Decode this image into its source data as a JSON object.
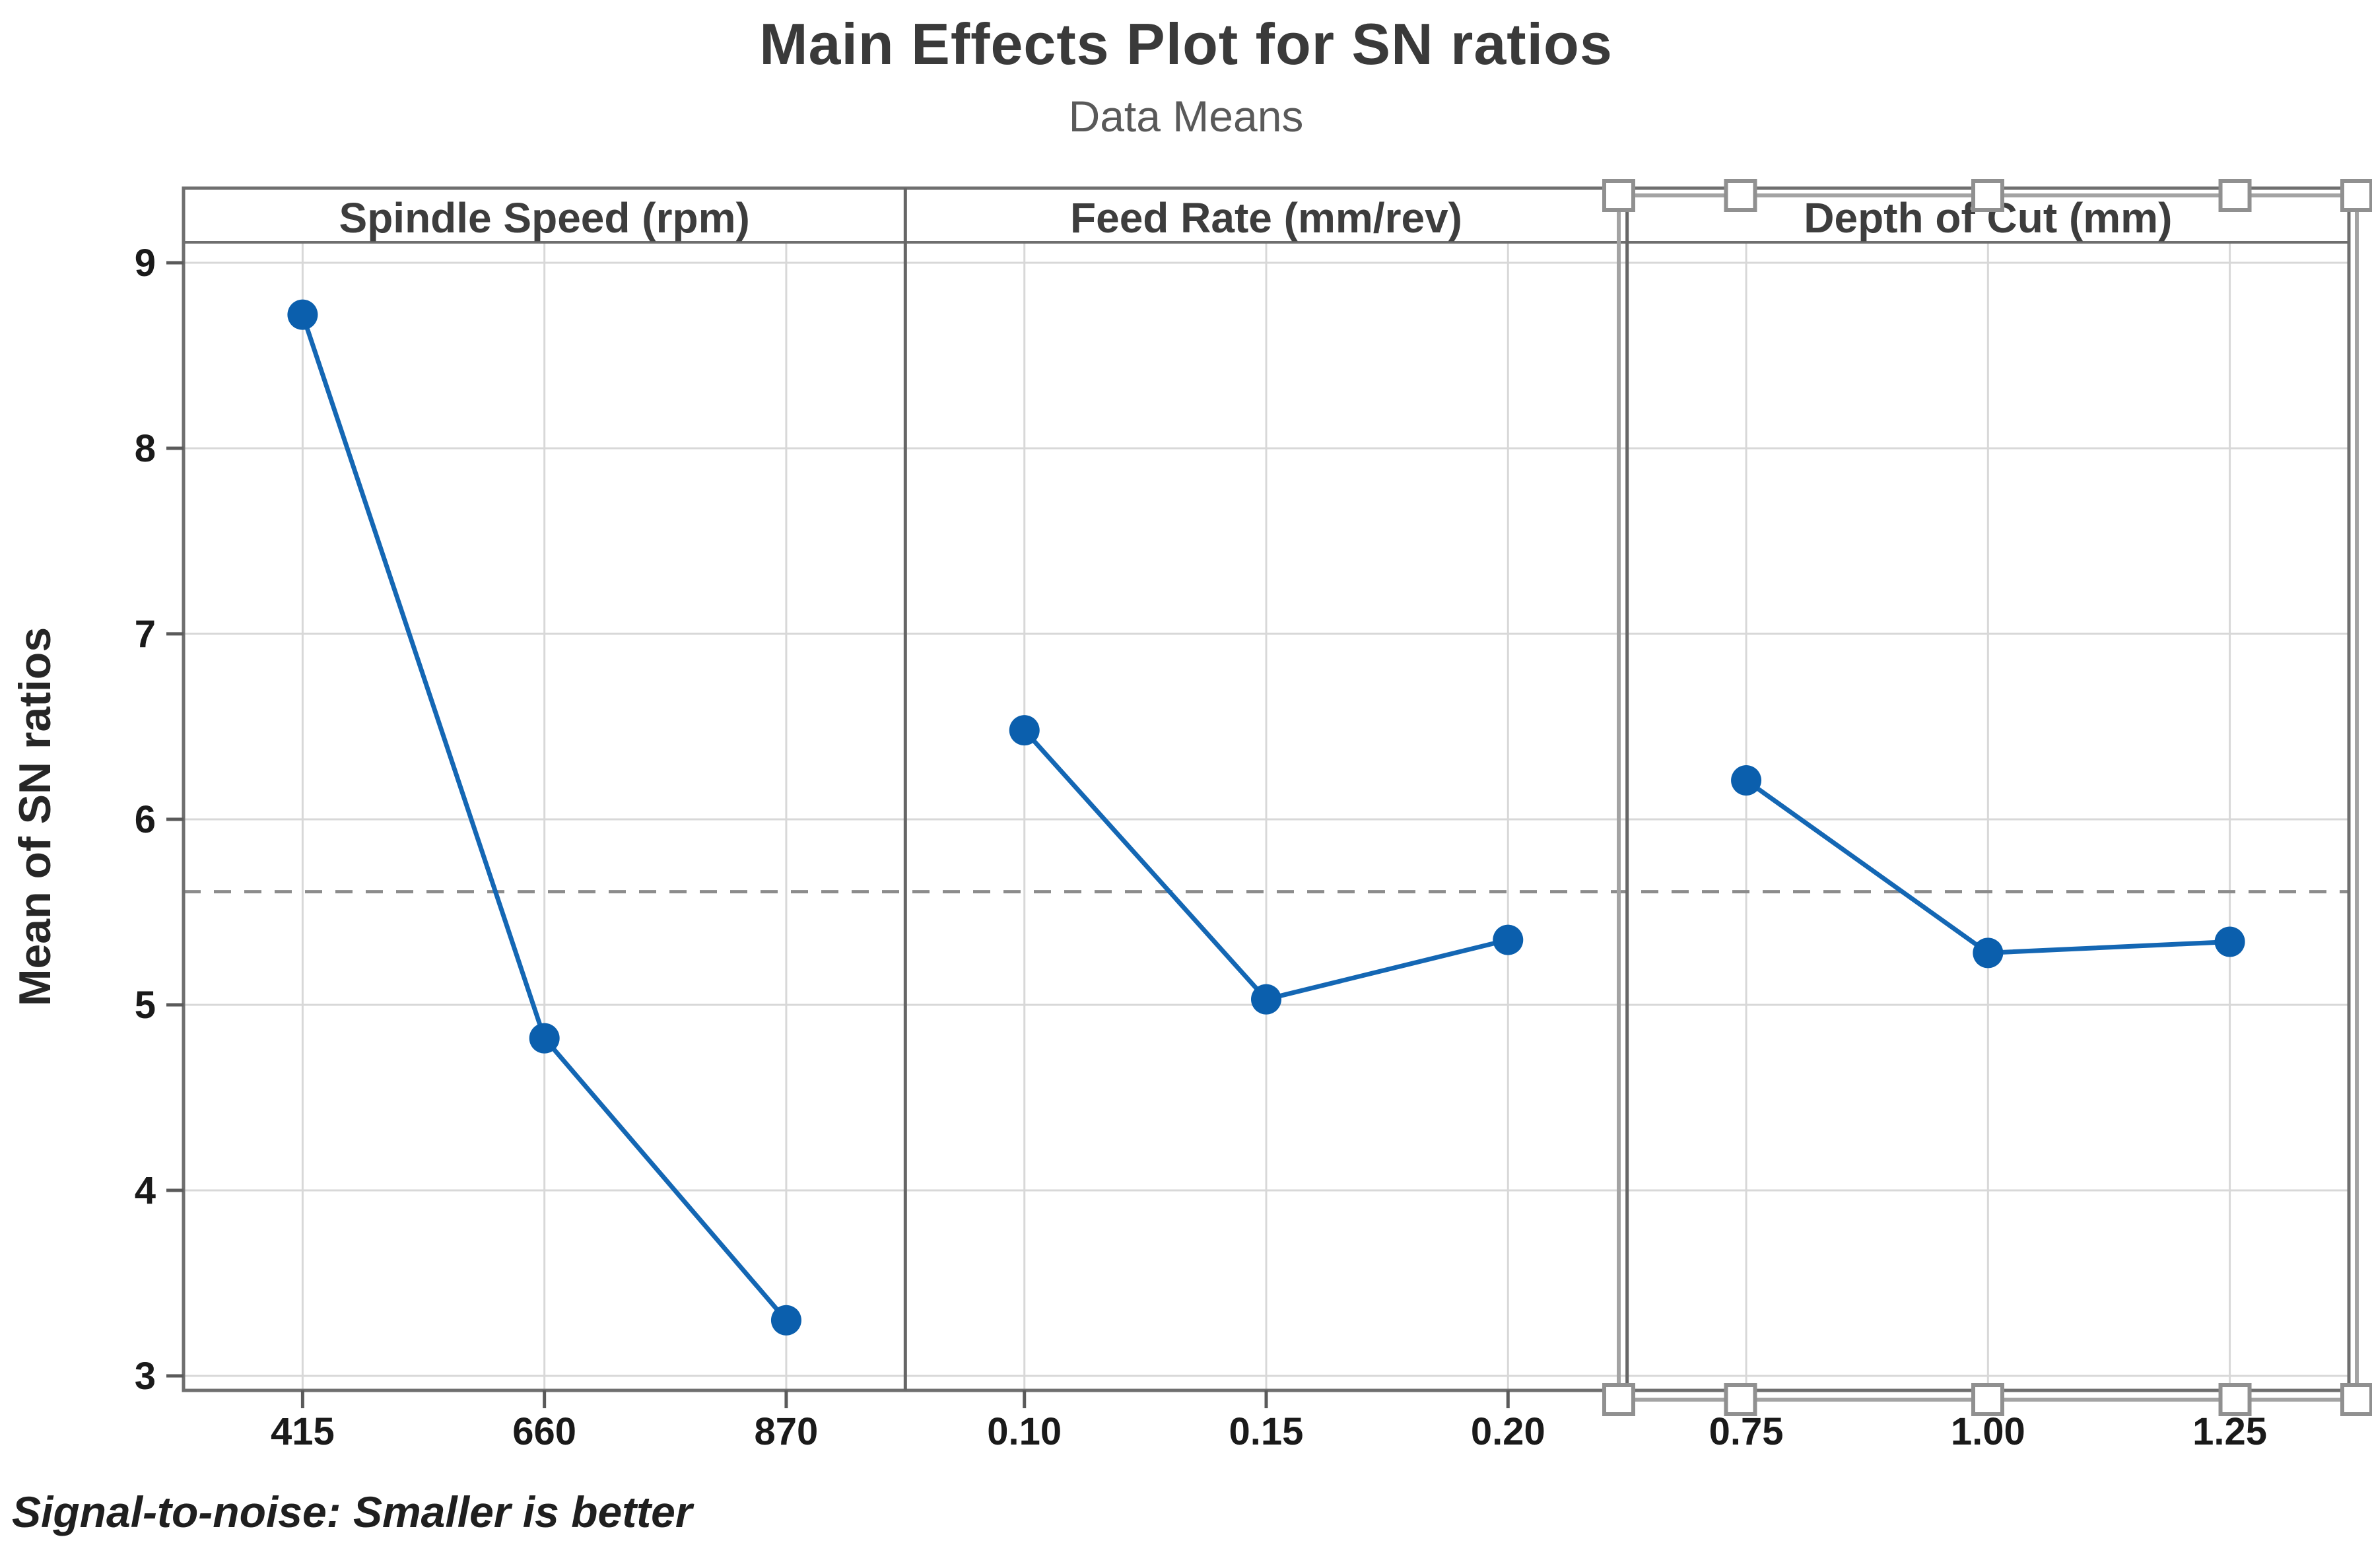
{
  "title": "Main Effects Plot for SN ratios",
  "subtitle": "Data Means",
  "footnote": "Signal-to-noise: Smaller is better",
  "chart_data": {
    "type": "line",
    "title": "Main Effects Plot for SN ratios",
    "subtitle": "Data Means",
    "ylabel": "Mean of SN ratios",
    "ylim": [
      3,
      9
    ],
    "yticks": [
      9,
      8,
      7,
      6,
      5,
      4,
      3
    ],
    "grid": true,
    "reference_line": {
      "value": 5.61,
      "style": "dashed",
      "meaning": "overall mean of SN ratios"
    },
    "panels": [
      {
        "title": "Spindle Speed (rpm)",
        "categories": [
          "415",
          "660",
          "870"
        ],
        "values": [
          8.72,
          4.82,
          3.3
        ]
      },
      {
        "title": "Feed Rate (mm/rev)",
        "categories": [
          "0.10",
          "0.15",
          "0.20"
        ],
        "values": [
          6.48,
          5.03,
          5.35
        ]
      },
      {
        "title": "Depth of Cut (mm)",
        "categories": [
          "0.75",
          "1.00",
          "1.25"
        ],
        "values": [
          6.21,
          5.28,
          5.34
        ]
      }
    ],
    "footnote": "Signal-to-noise: Smaller is better"
  },
  "style": {
    "series_line_color": "#1467B4",
    "marker_color": "#0B5FAD",
    "frame_color": "#6F6F6F",
    "divider_color": "#666666",
    "gridline_color": "#D8D8D8",
    "reference_line_color": "#8C8C8C",
    "tick_color": "#5A5A5A",
    "tick_label_color": "#1A1A1A",
    "panel_title_color": "#3D3D3D",
    "selection_edge_color": "#A3A3A3",
    "selection_handle_border": "#909090",
    "selection_handle_fill": "#FFFFFF"
  },
  "selection_overlay": {
    "present": true,
    "over_panel": "Depth of Cut (mm)",
    "handle_fractions": [
      0,
      0.165,
      0.5,
      0.835,
      1
    ],
    "handles_on": [
      "top-edge",
      "bottom-edge"
    ]
  }
}
